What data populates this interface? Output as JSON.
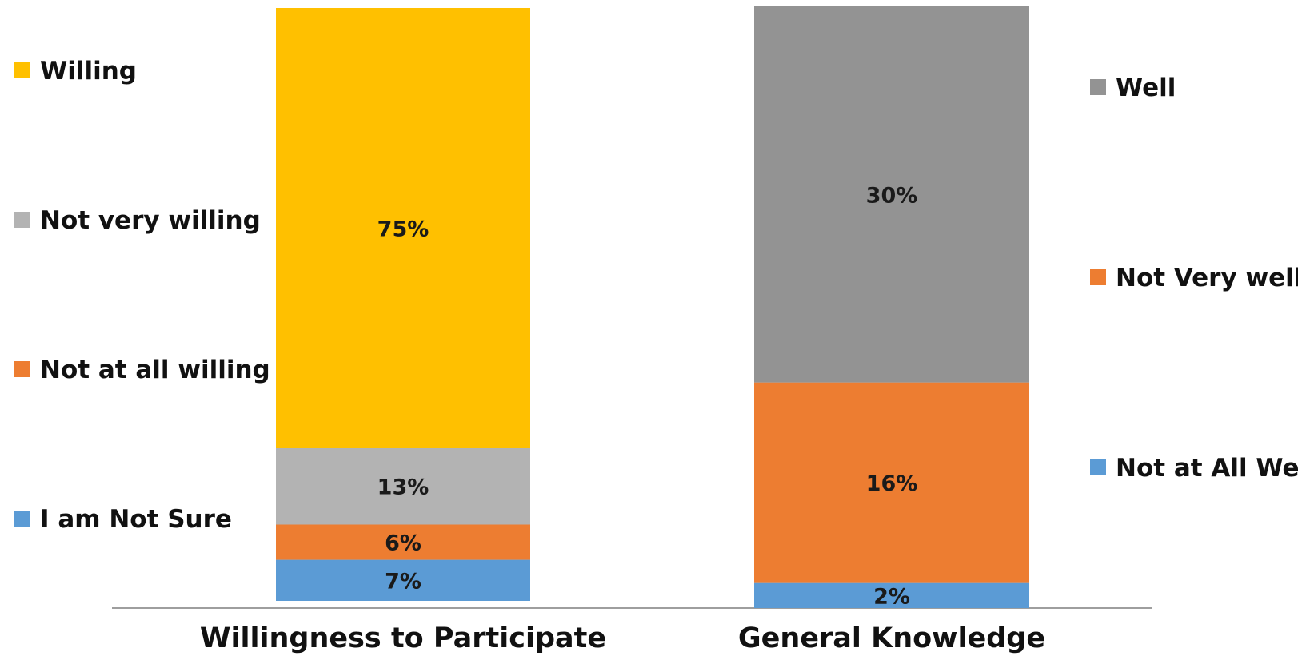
{
  "chart_data": [
    {
      "type": "bar",
      "stacked": true,
      "categories": [
        "Willingness to Participate"
      ],
      "series": [
        {
          "name": "I am Not Sure",
          "values": [
            7
          ],
          "label": "7%",
          "color": "#5b9bd5"
        },
        {
          "name": "Not at all willing",
          "values": [
            6
          ],
          "label": "6%",
          "color": "#ed7d31"
        },
        {
          "name": "Not very willing",
          "values": [
            13
          ],
          "label": "13%",
          "color": "#b3b3b3"
        },
        {
          "name": "Willing",
          "values": [
            75
          ],
          "label": "75%",
          "color": "#ffc000"
        }
      ],
      "legend": {
        "position": "left",
        "order": [
          "Willing",
          "Not very willing",
          "Not at all willing",
          "I am Not Sure"
        ]
      },
      "grid": false
    },
    {
      "type": "bar",
      "stacked": true,
      "categories": [
        "General Knowledge"
      ],
      "series": [
        {
          "name": "Not at All Well",
          "values": [
            2
          ],
          "label": "2%",
          "color": "#5b9bd5"
        },
        {
          "name": "Not Very well",
          "values": [
            16
          ],
          "label": "16%",
          "color": "#ed7d31"
        },
        {
          "name": "Well",
          "values": [
            30
          ],
          "label": "30%",
          "color": "#939393"
        }
      ],
      "legend": {
        "position": "right",
        "order": [
          "Well",
          "Not Very well",
          "Not at All Well"
        ]
      },
      "grid": false
    }
  ]
}
